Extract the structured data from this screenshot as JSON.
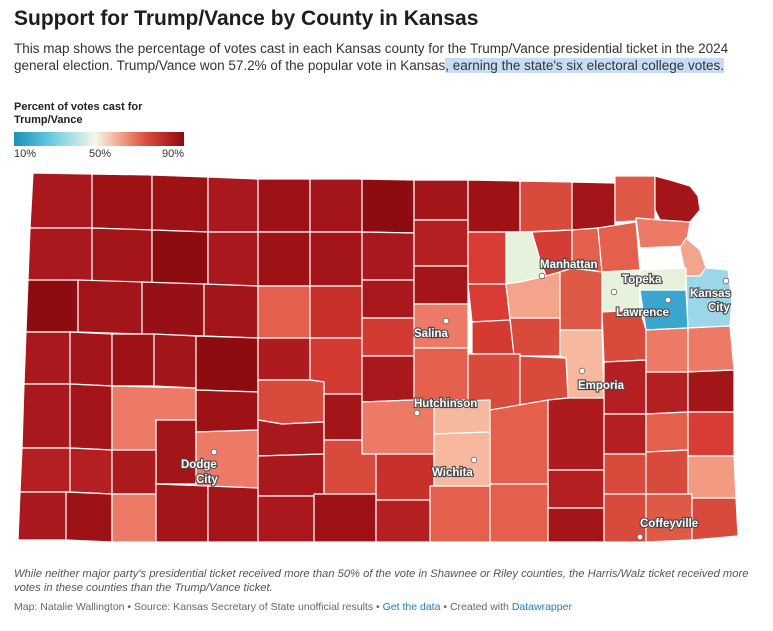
{
  "title": "Support for Trump/Vance by County in Kansas",
  "description_plain": "This map shows the percentage of votes cast in each Kansas county for the Trump/Vance presidential ticket in the 2024 general election. Trump/Vance won 57.2% of the popular vote in Kansas",
  "description_highlight": ", earning the state's six electoral college votes.",
  "legend": {
    "title": "Percent of votes cast for Trump/Vance",
    "labels": [
      "10%",
      "50%",
      "90%"
    ]
  },
  "colors": {
    "low": "#1c8fb6",
    "mid": "#f4f7ea",
    "high": "#8c0a10",
    "highlight": "#c7ddf7",
    "link": "#1c7cc2"
  },
  "cities": [
    "Manhattan",
    "Topeka",
    "Lawrence",
    "Kansas City",
    "Salina",
    "Emporia",
    "Hutchinson",
    "Wichita",
    "Dodge City",
    "Coffeyville"
  ],
  "footnote": "While neither major party's presidential ticket received more than 50% of the vote in Shawnee or Riley counties, the Harris/Walz ticket received more votes in these counties than the Trump/Vance ticket.",
  "credits": {
    "map_by": "Map: Natalie Wallington",
    "sep1": " • ",
    "source": "Source: Kansas Secretary of State unofficial results",
    "sep2": " • ",
    "get_data": "Get the data",
    "sep3": " • ",
    "created_with": "Created with ",
    "datawrapper": "Datawrapper"
  }
}
